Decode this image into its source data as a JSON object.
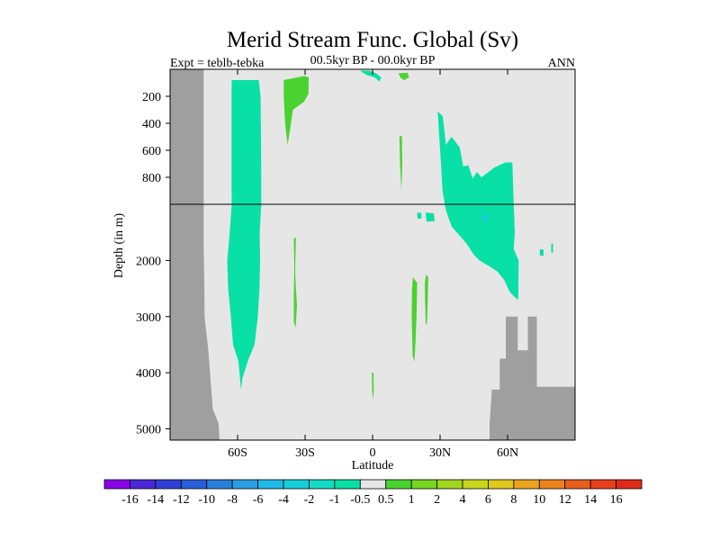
{
  "chart_data": {
    "type": "heatmap",
    "title": "Merid Stream Func. Global (Sv)",
    "subtitle_left": "Expt = teblb-tebka",
    "subtitle_center": "00.5kyr BP - 00.0kyr BP",
    "subtitle_right": "ANN",
    "xlabel": "Latitude",
    "ylabel": "Depth (in m)",
    "xlim": [
      -90,
      90
    ],
    "x_ticks": [
      {
        "value": -60,
        "label": "60S"
      },
      {
        "value": -30,
        "label": "30S"
      },
      {
        "value": 0,
        "label": "0"
      },
      {
        "value": 30,
        "label": "30N"
      },
      {
        "value": 60,
        "label": "60N"
      }
    ],
    "y_upper": {
      "range_m": [
        0,
        1000
      ],
      "ticks": [
        200,
        400,
        600,
        800
      ]
    },
    "y_lower": {
      "range_m": [
        1000,
        5200
      ],
      "ticks": [
        2000,
        3000,
        4000,
        5000
      ]
    },
    "land_color": "#9f9f9f",
    "background_color": "#e6e6e6",
    "colorbar": {
      "colors": [
        "#8a00e6",
        "#4a26d9",
        "#2f3fd6",
        "#2a5ed9",
        "#2a7fdc",
        "#2a9ee3",
        "#20b9e5",
        "#16cfd9",
        "#14dcc4",
        "#08e0a6",
        "#e6e6e6",
        "#4ad330",
        "#76d620",
        "#a2d61c",
        "#c8d61c",
        "#e2c81c",
        "#eba41c",
        "#ec821c",
        "#ea5e1c",
        "#e8401c",
        "#e02a18"
      ],
      "labels": [
        "-16",
        "-14",
        "-12",
        "-10",
        "-8",
        "-6",
        "-4",
        "-2",
        "-1",
        "-0.5",
        "0.5",
        "1",
        "2",
        "4",
        "6",
        "8",
        "10",
        "12",
        "14",
        "16"
      ]
    },
    "regions": [
      {
        "name": "southern-ocean-cell",
        "value": -0.75,
        "color": "#08e0a6",
        "polygon": [
          [
            -62.6,
            80
          ],
          [
            -50.6,
            80
          ],
          [
            -49.8,
            200
          ],
          [
            -49.6,
            500
          ],
          [
            -49.5,
            800
          ],
          [
            -49.5,
            1000
          ],
          [
            -50.2,
            1500
          ],
          [
            -50.0,
            2000
          ],
          [
            -50.3,
            2500
          ],
          [
            -51.0,
            3000
          ],
          [
            -52.5,
            3500
          ],
          [
            -55.1,
            3750
          ],
          [
            -57.9,
            4100
          ],
          [
            -58.5,
            4300
          ],
          [
            -59.6,
            3800
          ],
          [
            -62.0,
            3500
          ],
          [
            -63.0,
            3000
          ],
          [
            -64.2,
            2500
          ],
          [
            -64.6,
            2000
          ],
          [
            -63.5,
            1500
          ],
          [
            -62.6,
            1000
          ],
          [
            -62.7,
            800
          ],
          [
            -62.7,
            500
          ],
          [
            -62.7,
            200
          ]
        ]
      },
      {
        "name": "southern-subtropical-cell",
        "value": 1.5,
        "color": "#4ad330",
        "polygon": [
          [
            -39.5,
            80
          ],
          [
            -30.4,
            50
          ],
          [
            -28.4,
            60
          ],
          [
            -28.5,
            180
          ],
          [
            -30.5,
            240
          ],
          [
            -35.4,
            300
          ],
          [
            -37.0,
            480
          ],
          [
            -37.8,
            560
          ],
          [
            -38.9,
            400
          ],
          [
            -39.5,
            200
          ]
        ]
      },
      {
        "name": "north-atlantic-cell",
        "value": -0.75,
        "color": "#08e0a6",
        "polygon": [
          [
            28.9,
            310
          ],
          [
            31.2,
            350
          ],
          [
            32.6,
            560
          ],
          [
            35.0,
            500
          ],
          [
            36.5,
            530
          ],
          [
            38.7,
            580
          ],
          [
            40.3,
            720
          ],
          [
            42.5,
            710
          ],
          [
            44.5,
            810
          ],
          [
            46.3,
            760
          ],
          [
            48.4,
            800
          ],
          [
            53.9,
            730
          ],
          [
            56.3,
            710
          ],
          [
            59.1,
            690
          ],
          [
            62.1,
            690
          ],
          [
            62.7,
            1000
          ],
          [
            63.2,
            1500
          ],
          [
            62.7,
            1800
          ],
          [
            64.9,
            2000
          ],
          [
            64.8,
            2400
          ],
          [
            64.7,
            2700
          ],
          [
            63.0,
            2650
          ],
          [
            60.8,
            2550
          ],
          [
            58.5,
            2350
          ],
          [
            55.5,
            2200
          ],
          [
            51.7,
            2100
          ],
          [
            47.5,
            2000
          ],
          [
            45.0,
            1900
          ],
          [
            41.8,
            1700
          ],
          [
            35.2,
            1400
          ],
          [
            32.5,
            1100
          ],
          [
            31.1,
            900
          ],
          [
            30.4,
            700
          ]
        ]
      },
      {
        "name": "north-atlantic-core",
        "value": -1.5,
        "color": "#16cfd9",
        "polygon": [
          [
            48.4,
            1220
          ],
          [
            49.9,
            1150
          ],
          [
            51.2,
            1200
          ],
          [
            51.6,
            1280
          ],
          [
            50.2,
            1310
          ],
          [
            48.8,
            1290
          ]
        ]
      },
      {
        "name": "tropical-north-cell",
        "value": 1.5,
        "color": "#4ad330",
        "polygon": [
          [
            17.9,
            2300
          ],
          [
            19.8,
            2400
          ],
          [
            19.5,
            3000
          ],
          [
            19.0,
            3500
          ],
          [
            18.6,
            3800
          ],
          [
            17.8,
            3700
          ],
          [
            17.4,
            3000
          ],
          [
            17.5,
            2500
          ]
        ]
      },
      {
        "name": "tropical-north-cell-2",
        "value": 1.5,
        "color": "#4ad330",
        "polygon": [
          [
            23.8,
            2250
          ],
          [
            24.7,
            2300
          ],
          [
            24.5,
            2700
          ],
          [
            24.2,
            3100
          ],
          [
            23.6,
            3150
          ],
          [
            23.3,
            2700
          ],
          [
            23.2,
            2400
          ]
        ]
      },
      {
        "name": "southern-deep-cell",
        "value": 1.5,
        "color": "#4ad330",
        "polygon": [
          [
            -35.0,
            1600
          ],
          [
            -34.1,
            1600
          ],
          [
            -34.4,
            2200
          ],
          [
            -34.1,
            2500
          ],
          [
            -33.6,
            2800
          ],
          [
            -34.2,
            3200
          ],
          [
            -35.0,
            3100
          ],
          [
            -35.0,
            2600
          ],
          [
            -34.8,
            2100
          ]
        ]
      },
      {
        "name": "north-upper-patch",
        "value": 1.5,
        "color": "#4ad330",
        "polygon": [
          [
            11.5,
            30
          ],
          [
            15.5,
            25
          ],
          [
            16.2,
            60
          ],
          [
            14.0,
            80
          ],
          [
            12.5,
            65
          ]
        ]
      },
      {
        "name": "equator-upper-patch",
        "value": -0.75,
        "color": "#08e0a6",
        "polygon": [
          [
            -5.6,
            10
          ],
          [
            -1.5,
            10
          ],
          [
            1.6,
            30
          ],
          [
            3.8,
            60
          ],
          [
            3.0,
            90
          ],
          [
            0.9,
            60
          ],
          [
            -2.9,
            40
          ]
        ]
      },
      {
        "name": "north-patch-500m",
        "value": 1.5,
        "color": "#4ad330",
        "polygon": [
          [
            11.9,
            500
          ],
          [
            13.0,
            490
          ],
          [
            13.2,
            700
          ],
          [
            12.8,
            900
          ],
          [
            12.2,
            700
          ]
        ]
      },
      {
        "name": "equator-deep-patch",
        "value": 1.5,
        "color": "#4ad330",
        "polygon": [
          [
            -0.3,
            4000
          ],
          [
            0.4,
            4000
          ],
          [
            0.5,
            4300
          ],
          [
            0.2,
            4500
          ],
          [
            -0.2,
            4300
          ]
        ]
      },
      {
        "name": "tropical-patch-1200m",
        "value": -0.75,
        "color": "#08e0a6",
        "polygon": [
          [
            19.8,
            1150
          ],
          [
            21.6,
            1150
          ],
          [
            21.7,
            1250
          ],
          [
            20.0,
            1260
          ]
        ]
      },
      {
        "name": "tropical-patch-1400m",
        "value": -0.75,
        "color": "#08e0a6",
        "polygon": [
          [
            23.6,
            1150
          ],
          [
            27.2,
            1160
          ],
          [
            27.6,
            1300
          ],
          [
            24.0,
            1310
          ]
        ]
      },
      {
        "name": "north-patch-1900m",
        "value": -0.75,
        "color": "#08e0a6",
        "polygon": [
          [
            74.3,
            1800
          ],
          [
            76.0,
            1810
          ],
          [
            75.9,
            1920
          ],
          [
            74.3,
            1910
          ]
        ]
      },
      {
        "name": "north-patch-1800m",
        "value": -0.75,
        "color": "#08e0a6",
        "polygon": [
          [
            79.4,
            1700
          ],
          [
            80.2,
            1700
          ],
          [
            80.2,
            1860
          ],
          [
            79.4,
            1860
          ]
        ]
      }
    ],
    "land_profile_south": [
      [
        -75.1,
        0
      ],
      [
        -75.1,
        1800
      ],
      [
        -74.8,
        2400
      ],
      [
        -74.7,
        3000
      ],
      [
        -73.0,
        3600
      ],
      [
        -72.0,
        4150
      ],
      [
        -71.0,
        4650
      ],
      [
        -68.5,
        4900
      ],
      [
        -68.0,
        5200
      ]
    ],
    "land_profile_north": [
      [
        52.0,
        5200
      ],
      [
        52.0,
        4900
      ],
      [
        53.0,
        4300
      ],
      [
        56.5,
        4300
      ],
      [
        56.5,
        3750
      ],
      [
        59.2,
        3750
      ],
      [
        59.2,
        3000
      ],
      [
        64.5,
        3000
      ],
      [
        64.5,
        3600
      ],
      [
        69.0,
        3600
      ],
      [
        69.0,
        3000
      ],
      [
        73.0,
        3000
      ],
      [
        73.0,
        4250
      ],
      [
        90.0,
        4250
      ],
      [
        90.0,
        5200
      ]
    ]
  }
}
